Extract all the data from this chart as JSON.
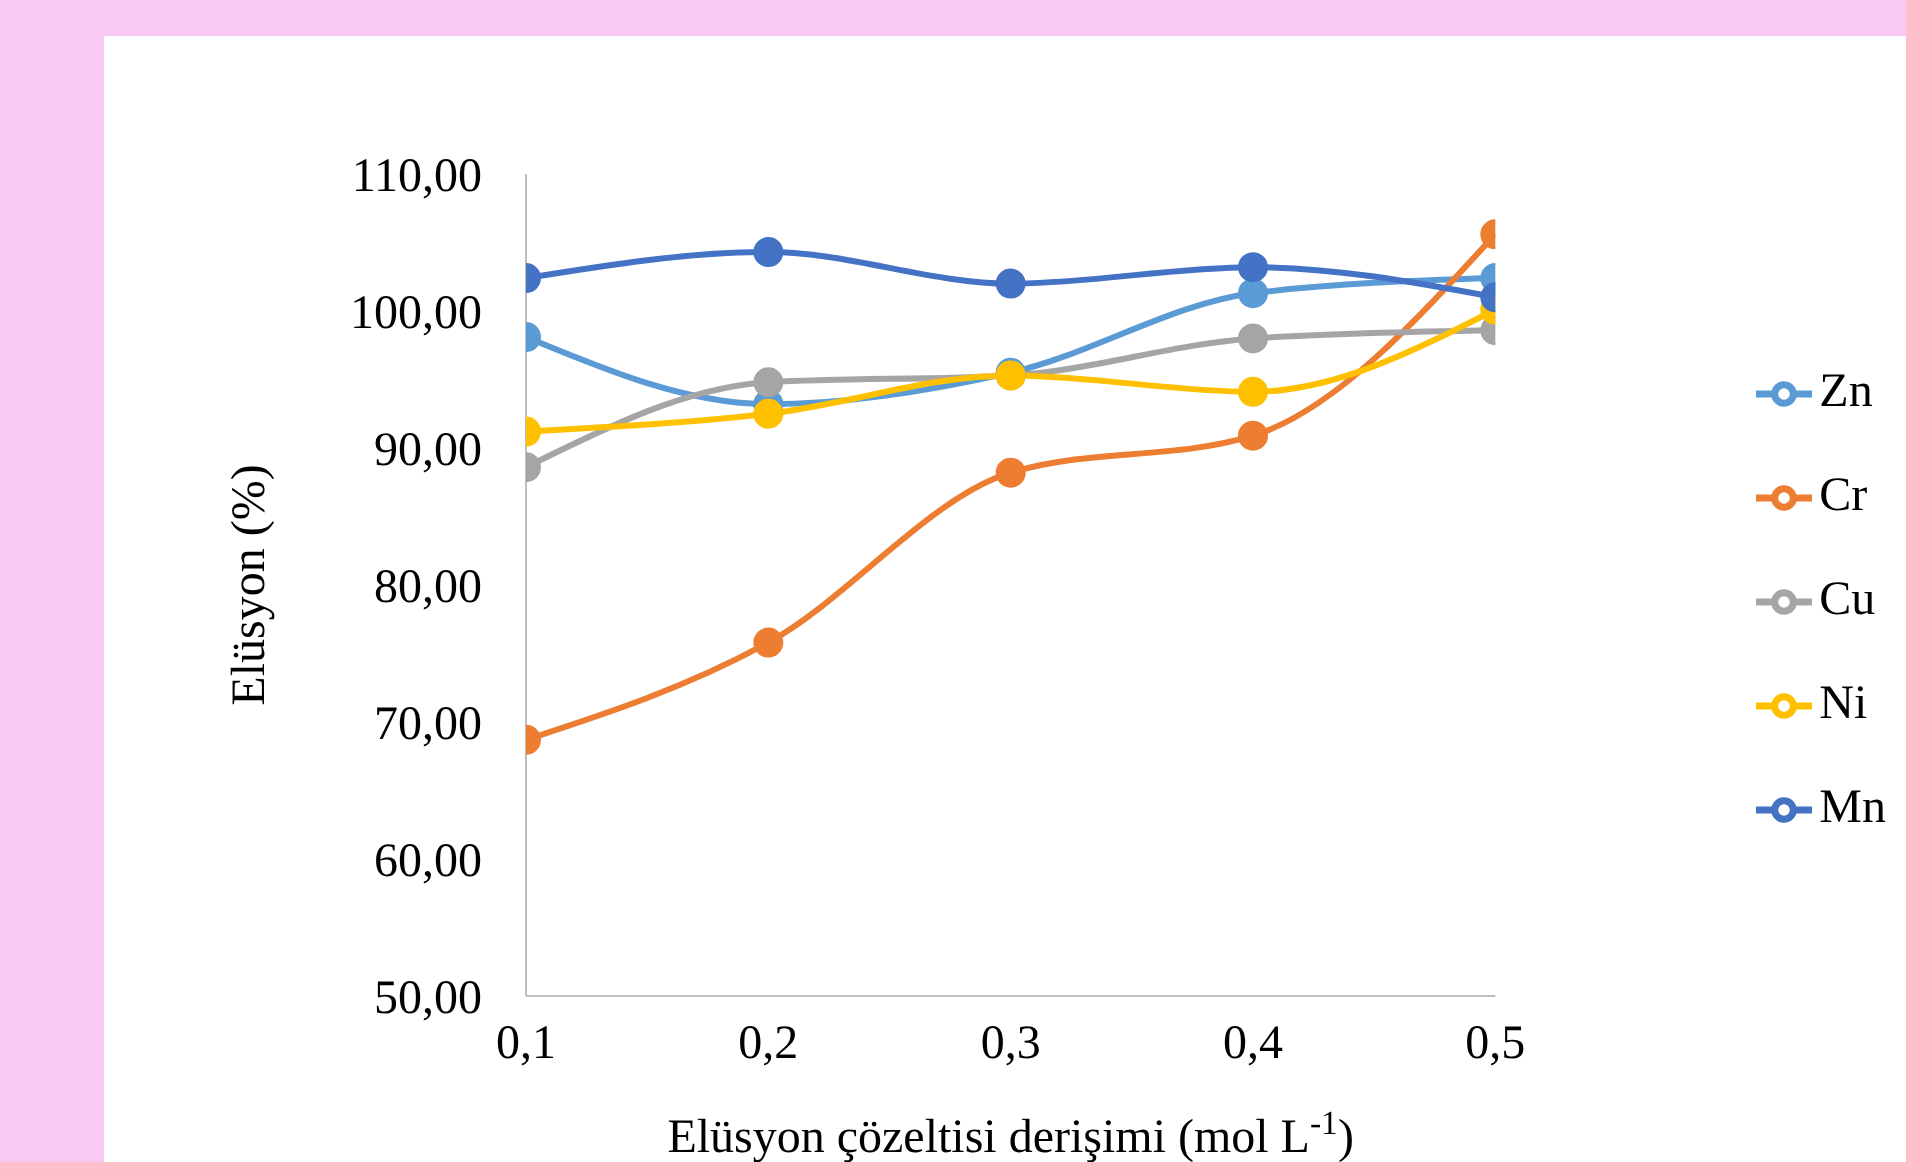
{
  "chart_data": {
    "type": "line",
    "xlabel": "Elüsyon çözeltisi derişimi (mol L$^{-1}$)",
    "ylabel": "Elüsyon (%)",
    "x": [
      0.1,
      0.2,
      0.3,
      0.4,
      0.5
    ],
    "xlim": [
      0.1,
      0.5
    ],
    "xticks": [
      {
        "value": 0.1,
        "label": "0,1"
      },
      {
        "value": 0.2,
        "label": "0,2"
      },
      {
        "value": 0.3,
        "label": "0,3"
      },
      {
        "value": 0.4,
        "label": "0,4"
      },
      {
        "value": 0.5,
        "label": "0,5"
      }
    ],
    "ylim": [
      50,
      110
    ],
    "yticks": [
      {
        "value": 50,
        "label": "50,00"
      },
      {
        "value": 60,
        "label": "60,00"
      },
      {
        "value": 70,
        "label": "70,00"
      },
      {
        "value": 80,
        "label": "80,00"
      },
      {
        "value": 90,
        "label": "90,00"
      },
      {
        "value": 100,
        "label": "100,00"
      },
      {
        "value": 110,
        "label": "110,00"
      }
    ],
    "series": [
      {
        "name": "Zn",
        "color": "#5b9bd5",
        "values": [
          98.1,
          93.2,
          95.5,
          101.3,
          102.4
        ]
      },
      {
        "name": "Cr",
        "color": "#ed7d31",
        "values": [
          68.7,
          75.8,
          88.2,
          90.9,
          105.6
        ]
      },
      {
        "name": "Cu",
        "color": "#a5a5a5",
        "values": [
          88.6,
          94.8,
          95.3,
          98.0,
          98.6
        ]
      },
      {
        "name": "Ni",
        "color": "#ffc000",
        "values": [
          91.2,
          92.5,
          95.3,
          94.1,
          100.1
        ]
      },
      {
        "name": "Mn",
        "color": "#4472c4",
        "values": [
          102.4,
          104.3,
          102.0,
          103.2,
          101.0
        ]
      }
    ],
    "grid": false,
    "legend": "right",
    "marker": "circle",
    "line_style": "solid"
  }
}
